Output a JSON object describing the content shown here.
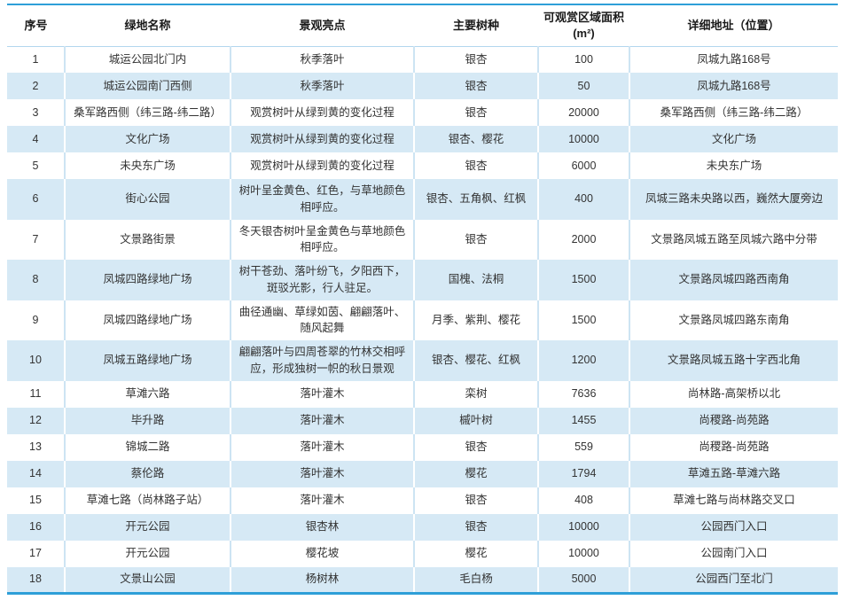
{
  "chart_data": {
    "type": "table",
    "title": "",
    "columns": [
      "序号",
      "绿地名称",
      "景观亮点",
      "主要树种",
      "可观赏区域面积 (m²)",
      "详细地址（位置）"
    ],
    "column_keys": [
      "index",
      "name",
      "highlight",
      "species",
      "area",
      "address"
    ],
    "rows": [
      [
        "1",
        "城运公园北门内",
        "秋季落叶",
        "银杏",
        "100",
        "凤城九路168号"
      ],
      [
        "2",
        "城运公园南门西侧",
        "秋季落叶",
        "银杏",
        "50",
        "凤城九路168号"
      ],
      [
        "3",
        "桑军路西侧（纬三路-纬二路）",
        "观赏树叶从绿到黄的变化过程",
        "银杏",
        "20000",
        "桑军路西侧（纬三路-纬二路）"
      ],
      [
        "4",
        "文化广场",
        "观赏树叶从绿到黄的变化过程",
        "银杏、樱花",
        "10000",
        "文化广场"
      ],
      [
        "5",
        "未央东广场",
        "观赏树叶从绿到黄的变化过程",
        "银杏",
        "6000",
        "未央东广场"
      ],
      [
        "6",
        "街心公园",
        "树叶呈金黄色、红色，与草地颜色相呼应。",
        "银杏、五角枫、红枫",
        "400",
        "凤城三路未央路以西，巍然大厦旁边"
      ],
      [
        "7",
        "文景路街景",
        "冬天银杏树叶呈金黄色与草地颜色相呼应。",
        "银杏",
        "2000",
        "文景路凤城五路至凤城六路中分带"
      ],
      [
        "8",
        "凤城四路绿地广场",
        "树干苍劲、落叶纷飞，夕阳西下，斑驳光影，行人驻足。",
        "国槐、法桐",
        "1500",
        "文景路凤城四路西南角"
      ],
      [
        "9",
        "凤城四路绿地广场",
        "曲径通幽、草绿如茵、翩翩落叶、随风起舞",
        "月季、紫荆、樱花",
        "1500",
        "文景路凤城四路东南角"
      ],
      [
        "10",
        "凤城五路绿地广场",
        "翩翩落叶与四周苍翠的竹林交相呼应，形成独树一帜的秋日景观",
        "银杏、樱花、红枫",
        "1200",
        "文景路凤城五路十字西北角"
      ],
      [
        "11",
        "草滩六路",
        "落叶灌木",
        "栾树",
        "7636",
        "尚林路-高架桥以北"
      ],
      [
        "12",
        "毕升路",
        "落叶灌木",
        "槭叶树",
        "1455",
        "尚稷路-尚苑路"
      ],
      [
        "13",
        "锦城二路",
        "落叶灌木",
        "银杏",
        "559",
        "尚稷路-尚苑路"
      ],
      [
        "14",
        "蔡伦路",
        "落叶灌木",
        "樱花",
        "1794",
        "草滩五路-草滩六路"
      ],
      [
        "15",
        "草滩七路（尚林路子站）",
        "落叶灌木",
        "银杏",
        "408",
        "草滩七路与尚林路交叉口"
      ],
      [
        "16",
        "开元公园",
        "银杏林",
        "银杏",
        "10000",
        "公园西门入口"
      ],
      [
        "17",
        "开元公园",
        "樱花坡",
        "樱花",
        "10000",
        "公园南门入口"
      ],
      [
        "18",
        "文景山公园",
        "杨树林",
        "毛白杨",
        "5000",
        "公园西门至北门"
      ]
    ]
  },
  "colors": {
    "accent_border": "#2e9fd8",
    "zebra_row": "#d6e9f5",
    "divider_on_white": "#cde4f3",
    "header_underline": "#b3d7ee",
    "header_text": "#1a1a1a",
    "text": "#333333"
  }
}
